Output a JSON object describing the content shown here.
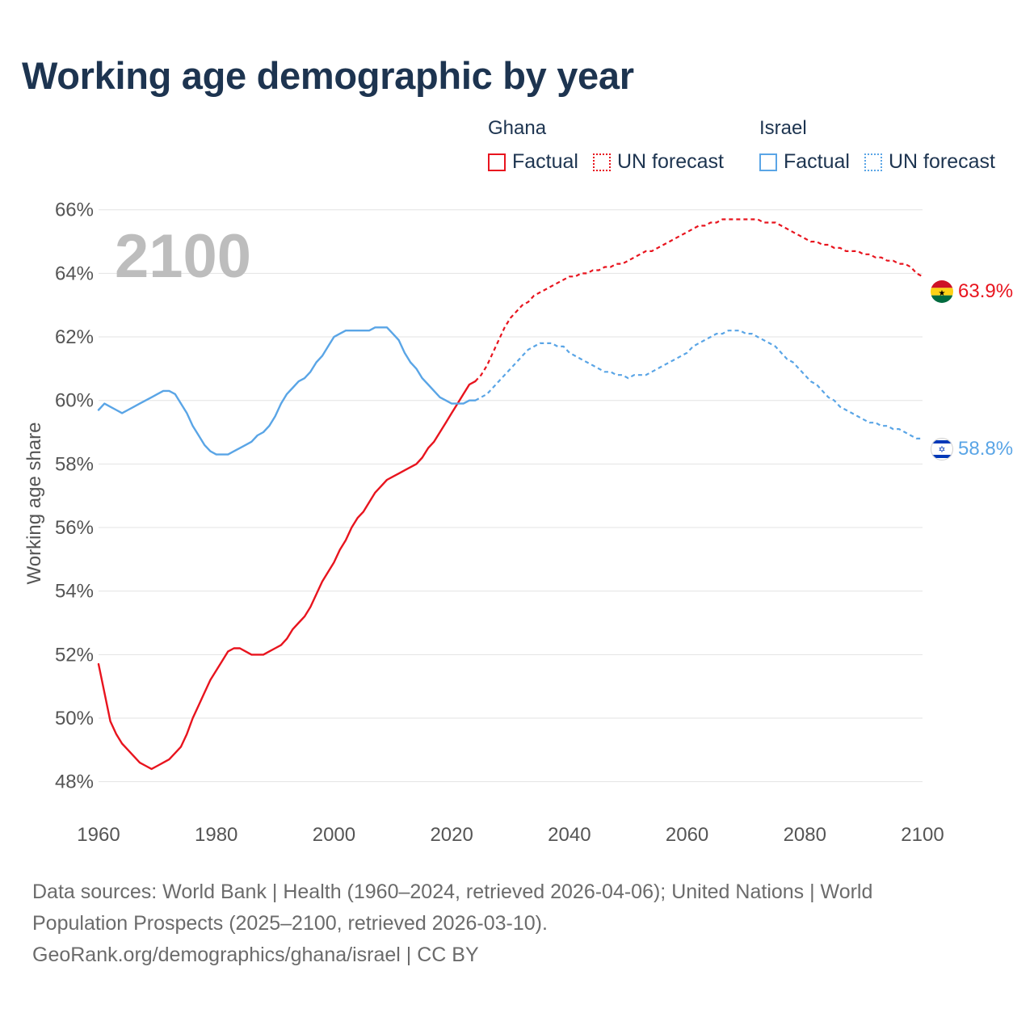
{
  "title": "Working age demographic by year",
  "legend": {
    "groups": [
      {
        "name": "Ghana",
        "color": "#e8141e",
        "factual_label": "Factual",
        "forecast_label": "UN forecast"
      },
      {
        "name": "Israel",
        "color": "#5aa5e6",
        "factual_label": "Factual",
        "forecast_label": "UN forecast"
      }
    ]
  },
  "footer": {
    "sources": "Data sources: World Bank | Health (1960–2024, retrieved 2026-04-06); United Nations | World Population Prospects (2025–2100, retrieved 2026-03-10).",
    "credit": "GeoRank.org/demographics/ghana/israel | CC BY"
  },
  "chart_data": {
    "type": "line",
    "title": "Working age demographic by year",
    "current_year": "2100",
    "xlabel": "",
    "ylabel": "Working age share",
    "xlim": [
      1960,
      2100
    ],
    "ylim": [
      47,
      66.4
    ],
    "x_ticks": [
      1960,
      1980,
      2000,
      2020,
      2040,
      2060,
      2080,
      2100
    ],
    "y_ticks": [
      48,
      50,
      52,
      54,
      56,
      58,
      60,
      62,
      64,
      66
    ],
    "y_tick_labels": [
      "48%",
      "50%",
      "52%",
      "54%",
      "56%",
      "58%",
      "60%",
      "62%",
      "64%",
      "66%"
    ],
    "grid": "horizontal",
    "series": [
      {
        "name": "Ghana",
        "color": "#e8141e",
        "flag": "ghana",
        "end_label": "63.9%",
        "factual": {
          "x": [
            1960,
            1961,
            1962,
            1963,
            1964,
            1965,
            1966,
            1967,
            1968,
            1969,
            1970,
            1971,
            1972,
            1973,
            1974,
            1975,
            1976,
            1977,
            1978,
            1979,
            1980,
            1981,
            1982,
            1983,
            1984,
            1985,
            1986,
            1987,
            1988,
            1989,
            1990,
            1991,
            1992,
            1993,
            1994,
            1995,
            1996,
            1997,
            1998,
            1999,
            2000,
            2001,
            2002,
            2003,
            2004,
            2005,
            2006,
            2007,
            2008,
            2009,
            2010,
            2011,
            2012,
            2013,
            2014,
            2015,
            2016,
            2017,
            2018,
            2019,
            2020,
            2021,
            2022,
            2023,
            2024
          ],
          "y": [
            51.7,
            50.8,
            49.9,
            49.5,
            49.2,
            49.0,
            48.8,
            48.6,
            48.5,
            48.4,
            48.5,
            48.6,
            48.7,
            48.9,
            49.1,
            49.5,
            50.0,
            50.4,
            50.8,
            51.2,
            51.5,
            51.8,
            52.1,
            52.2,
            52.2,
            52.1,
            52.0,
            52.0,
            52.0,
            52.1,
            52.2,
            52.3,
            52.5,
            52.8,
            53.0,
            53.2,
            53.5,
            53.9,
            54.3,
            54.6,
            54.9,
            55.3,
            55.6,
            56.0,
            56.3,
            56.5,
            56.8,
            57.1,
            57.3,
            57.5,
            57.6,
            57.7,
            57.8,
            57.9,
            58.0,
            58.2,
            58.5,
            58.7,
            59.0,
            59.3,
            59.6,
            59.9,
            60.2,
            60.5,
            60.6
          ]
        },
        "forecast": {
          "x": [
            2024,
            2025,
            2026,
            2027,
            2028,
            2029,
            2030,
            2031,
            2032,
            2033,
            2034,
            2035,
            2036,
            2037,
            2038,
            2039,
            2040,
            2041,
            2042,
            2043,
            2044,
            2045,
            2046,
            2047,
            2048,
            2049,
            2050,
            2051,
            2052,
            2053,
            2054,
            2055,
            2056,
            2057,
            2058,
            2059,
            2060,
            2061,
            2062,
            2063,
            2064,
            2065,
            2066,
            2067,
            2068,
            2069,
            2070,
            2071,
            2072,
            2073,
            2074,
            2075,
            2076,
            2077,
            2078,
            2079,
            2080,
            2081,
            2082,
            2083,
            2084,
            2085,
            2086,
            2087,
            2088,
            2089,
            2090,
            2091,
            2092,
            2093,
            2094,
            2095,
            2096,
            2097,
            2098,
            2099,
            2100
          ],
          "y": [
            60.6,
            60.8,
            61.1,
            61.5,
            61.9,
            62.3,
            62.6,
            62.8,
            63.0,
            63.1,
            63.3,
            63.4,
            63.5,
            63.6,
            63.7,
            63.8,
            63.9,
            63.9,
            64.0,
            64.0,
            64.1,
            64.1,
            64.2,
            64.2,
            64.3,
            64.3,
            64.4,
            64.5,
            64.6,
            64.7,
            64.7,
            64.8,
            64.9,
            65.0,
            65.1,
            65.2,
            65.3,
            65.4,
            65.5,
            65.5,
            65.6,
            65.6,
            65.7,
            65.7,
            65.7,
            65.7,
            65.7,
            65.7,
            65.7,
            65.6,
            65.6,
            65.6,
            65.5,
            65.4,
            65.3,
            65.2,
            65.1,
            65.0,
            65.0,
            64.9,
            64.9,
            64.8,
            64.8,
            64.7,
            64.7,
            64.7,
            64.6,
            64.6,
            64.5,
            64.5,
            64.4,
            64.4,
            64.3,
            64.3,
            64.2,
            64.0,
            63.9
          ]
        }
      },
      {
        "name": "Israel",
        "color": "#5aa5e6",
        "flag": "israel",
        "end_label": "58.8%",
        "factual": {
          "x": [
            1960,
            1961,
            1962,
            1963,
            1964,
            1965,
            1966,
            1967,
            1968,
            1969,
            1970,
            1971,
            1972,
            1973,
            1974,
            1975,
            1976,
            1977,
            1978,
            1979,
            1980,
            1981,
            1982,
            1983,
            1984,
            1985,
            1986,
            1987,
            1988,
            1989,
            1990,
            1991,
            1992,
            1993,
            1994,
            1995,
            1996,
            1997,
            1998,
            1999,
            2000,
            2001,
            2002,
            2003,
            2004,
            2005,
            2006,
            2007,
            2008,
            2009,
            2010,
            2011,
            2012,
            2013,
            2014,
            2015,
            2016,
            2017,
            2018,
            2019,
            2020,
            2021,
            2022,
            2023,
            2024
          ],
          "y": [
            59.7,
            59.9,
            59.8,
            59.7,
            59.6,
            59.7,
            59.8,
            59.9,
            60.0,
            60.1,
            60.2,
            60.3,
            60.3,
            60.2,
            59.9,
            59.6,
            59.2,
            58.9,
            58.6,
            58.4,
            58.3,
            58.3,
            58.3,
            58.4,
            58.5,
            58.6,
            58.7,
            58.9,
            59.0,
            59.2,
            59.5,
            59.9,
            60.2,
            60.4,
            60.6,
            60.7,
            60.9,
            61.2,
            61.4,
            61.7,
            62.0,
            62.1,
            62.2,
            62.2,
            62.2,
            62.2,
            62.2,
            62.3,
            62.3,
            62.3,
            62.1,
            61.9,
            61.5,
            61.2,
            61.0,
            60.7,
            60.5,
            60.3,
            60.1,
            60.0,
            59.9,
            59.9,
            59.9,
            60.0,
            60.0
          ]
        },
        "forecast": {
          "x": [
            2024,
            2025,
            2026,
            2027,
            2028,
            2029,
            2030,
            2031,
            2032,
            2033,
            2034,
            2035,
            2036,
            2037,
            2038,
            2039,
            2040,
            2041,
            2042,
            2043,
            2044,
            2045,
            2046,
            2047,
            2048,
            2049,
            2050,
            2051,
            2052,
            2053,
            2054,
            2055,
            2056,
            2057,
            2058,
            2059,
            2060,
            2061,
            2062,
            2063,
            2064,
            2065,
            2066,
            2067,
            2068,
            2069,
            2070,
            2071,
            2072,
            2073,
            2074,
            2075,
            2076,
            2077,
            2078,
            2079,
            2080,
            2081,
            2082,
            2083,
            2084,
            2085,
            2086,
            2087,
            2088,
            2089,
            2090,
            2091,
            2092,
            2093,
            2094,
            2095,
            2096,
            2097,
            2098,
            2099,
            2100
          ],
          "y": [
            60.0,
            60.1,
            60.2,
            60.4,
            60.6,
            60.8,
            61.0,
            61.2,
            61.4,
            61.6,
            61.7,
            61.8,
            61.8,
            61.8,
            61.7,
            61.7,
            61.5,
            61.4,
            61.3,
            61.2,
            61.1,
            61.0,
            60.9,
            60.9,
            60.8,
            60.8,
            60.7,
            60.8,
            60.8,
            60.8,
            60.9,
            61.0,
            61.1,
            61.2,
            61.3,
            61.4,
            61.5,
            61.7,
            61.8,
            61.9,
            62.0,
            62.1,
            62.1,
            62.2,
            62.2,
            62.2,
            62.1,
            62.1,
            62.0,
            61.9,
            61.8,
            61.7,
            61.5,
            61.3,
            61.2,
            61.0,
            60.8,
            60.6,
            60.5,
            60.3,
            60.1,
            60.0,
            59.8,
            59.7,
            59.6,
            59.5,
            59.4,
            59.3,
            59.3,
            59.2,
            59.2,
            59.1,
            59.1,
            59.0,
            58.9,
            58.8,
            58.8
          ]
        }
      }
    ]
  }
}
